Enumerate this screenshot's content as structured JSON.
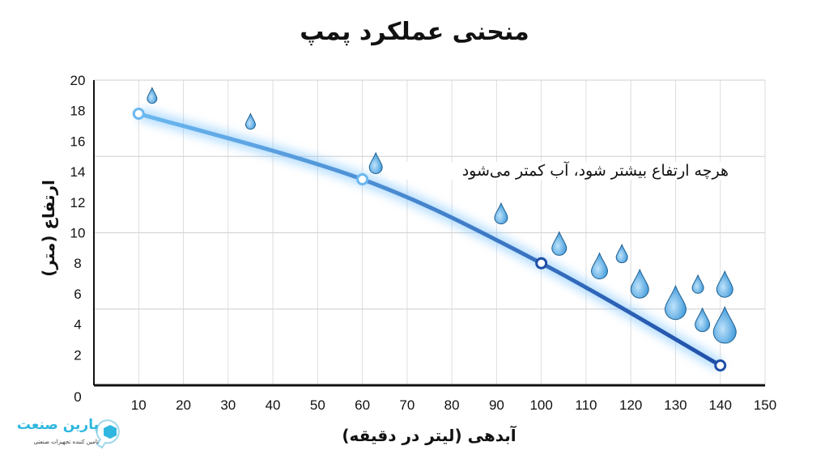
{
  "chart_data": {
    "type": "line",
    "title": "منحنی عملکرد پمپ",
    "xlabel": "آبدهی (لیتر در دقیقه)",
    "ylabel": "ارتفاع (متر)",
    "xlim": [
      0,
      150
    ],
    "ylim": [
      0,
      20
    ],
    "x_ticks": [
      10,
      20,
      30,
      40,
      50,
      60,
      70,
      80,
      90,
      100,
      110,
      120,
      130,
      140,
      150
    ],
    "y_ticks": [
      0,
      2,
      4,
      6,
      8,
      10,
      12,
      14,
      16,
      18,
      20
    ],
    "grid": true,
    "series": [
      {
        "x": [
          10,
          60,
          100,
          140
        ],
        "y": [
          17.8,
          13.5,
          8,
          1.3
        ],
        "color_start": "#6bb8f0",
        "color_end": "#1f4fa8"
      }
    ],
    "annotation": "هرچه ارتفاع بیشتر شود، آب کمتر می‌شود",
    "drop_color": "#3a9be0"
  },
  "logo": {
    "name": "پارین صنعت",
    "tagline": "تامین کننده تجهیزات صنعتی",
    "color": "#2fb7df"
  }
}
